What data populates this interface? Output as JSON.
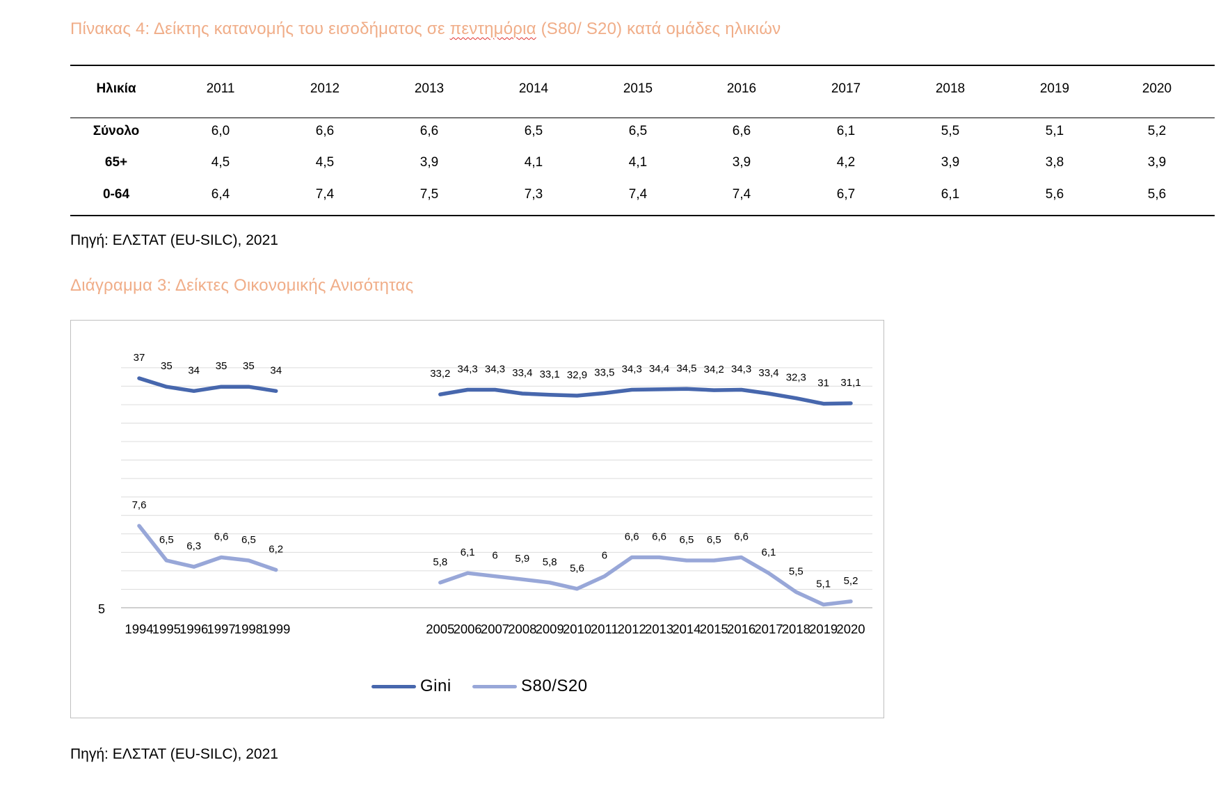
{
  "table_title_pre": "Πίνακας 4: Δείκτης κατανομής του εισοδήματος σε ",
  "table_title_spell": "πεντημόρια",
  "table_title_post": " (S80/ S20) κατά ομάδες ηλικιών",
  "colors": {
    "heading": "#f0ad88",
    "gini": "#4767ad",
    "s80s20": "#98a7d8",
    "gridline": "#dcdcdc",
    "axis_line": "#bfbfbf",
    "spellcheck_underline": "#e0302c"
  },
  "table": {
    "header_label": "Ηλικία",
    "years": [
      "2011",
      "2012",
      "2013",
      "2014",
      "2015",
      "2016",
      "2017",
      "2018",
      "2019",
      "2020"
    ],
    "rows": [
      {
        "label": "Σύνολο",
        "values": [
          "6,0",
          "6,6",
          "6,6",
          "6,5",
          "6,5",
          "6,6",
          "6,1",
          "5,5",
          "5,1",
          "5,2"
        ]
      },
      {
        "label": "65+",
        "values": [
          "4,5",
          "4,5",
          "3,9",
          "4,1",
          "4,1",
          "3,9",
          "4,2",
          "3,9",
          "3,8",
          "3,9"
        ]
      },
      {
        "label": "0-64",
        "values": [
          "6,4",
          "7,4",
          "7,5",
          "7,3",
          "7,4",
          "7,4",
          "6,7",
          "6,1",
          "5,6",
          "5,6"
        ]
      }
    ]
  },
  "source_text": "Πηγή: ΕΛΣΤΑΤ (EU-SILC), 2021",
  "chart_title": "Διάγραμμα 3: Δείκτες Οικονομικής Ανισότητας",
  "chart_data": {
    "type": "line",
    "title": "",
    "xlabel": "",
    "ylabel": "",
    "grid": true,
    "legend_position": "bottom",
    "y_tick_labels": [
      "5"
    ],
    "categories": [
      "1994",
      "1995",
      "1996",
      "1997",
      "1998",
      "1999",
      "",
      "",
      "",
      "",
      "",
      "2005",
      "2006",
      "2007",
      "2008",
      "2009",
      "2010",
      "2011",
      "2012",
      "2013",
      "2014",
      "2015",
      "2016",
      "2017",
      "2018",
      "2019",
      "2020"
    ],
    "series": [
      {
        "name": "Gini",
        "color": "#4767ad",
        "values": [
          37,
          35,
          34,
          35,
          35,
          34,
          null,
          null,
          null,
          null,
          null,
          33.2,
          34.3,
          34.3,
          33.4,
          33.1,
          32.9,
          33.5,
          34.3,
          34.4,
          34.5,
          34.2,
          34.3,
          33.4,
          32.3,
          31,
          31.1
        ],
        "labels": [
          "37",
          "35",
          "34",
          "35",
          "35",
          "34",
          "",
          "",
          "",
          "",
          "",
          "33,2",
          "34,3",
          "34,3",
          "33,4",
          "33,1",
          "32,9",
          "33,5",
          "34,3",
          "34,4",
          "34,5",
          "34,2",
          "34,3",
          "33,4",
          "32,3",
          "31",
          "31,1"
        ]
      },
      {
        "name": "S80/S20",
        "color": "#98a7d8",
        "values": [
          7.6,
          6.5,
          6.3,
          6.6,
          6.5,
          6.2,
          null,
          null,
          null,
          null,
          null,
          5.8,
          6.1,
          6,
          5.9,
          5.8,
          5.6,
          6,
          6.6,
          6.6,
          6.5,
          6.5,
          6.6,
          6.1,
          5.5,
          5.1,
          5.2
        ],
        "labels": [
          "7,6",
          "6,5",
          "6,3",
          "6,6",
          "6,5",
          "6,2",
          "",
          "",
          "",
          "",
          "",
          "5,8",
          "6,1",
          "6",
          "5,9",
          "5,8",
          "5,6",
          "6",
          "6,6",
          "6,6",
          "6,5",
          "6,5",
          "6,6",
          "6,1",
          "5,5",
          "5,1",
          "5,2"
        ]
      }
    ]
  }
}
